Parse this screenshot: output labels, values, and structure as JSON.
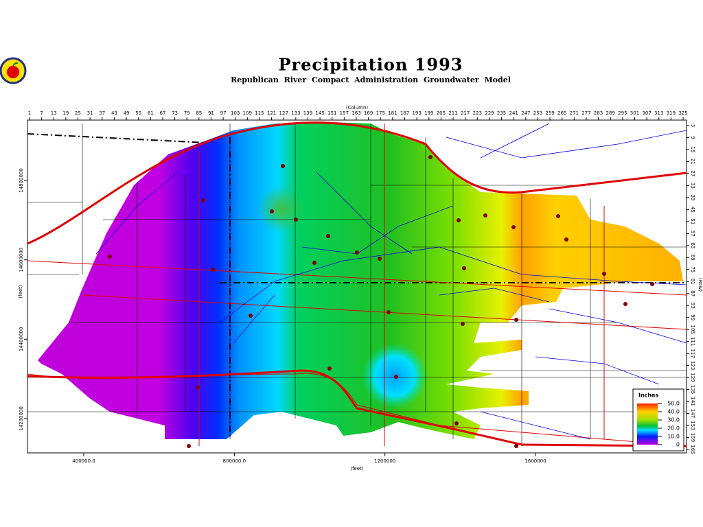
{
  "title": "Precipitation 1993",
  "subtitle": "Republican River Compact Administration Groundwater Model",
  "column_axis": {
    "label": "(Column)",
    "ticks": [
      1,
      7,
      13,
      19,
      25,
      31,
      37,
      43,
      49,
      55,
      61,
      67,
      73,
      79,
      85,
      91,
      97,
      103,
      109,
      115,
      121,
      127,
      133,
      139,
      145,
      151,
      157,
      163,
      169,
      175,
      181,
      187,
      193,
      199,
      205,
      211,
      217,
      223,
      229,
      235,
      241,
      247,
      253,
      259,
      265,
      271,
      277,
      283,
      289,
      295,
      301,
      307,
      313,
      319,
      325
    ]
  },
  "row_axis": {
    "label": "(Row)",
    "ticks": [
      3,
      9,
      15,
      21,
      27,
      33,
      39,
      45,
      51,
      57,
      63,
      69,
      75,
      81,
      87,
      93,
      99,
      105,
      111,
      117,
      123,
      129,
      135,
      141,
      147,
      153,
      159,
      165
    ]
  },
  "x_axis": {
    "label": "(feet)",
    "ticks": [
      {
        "value": 400000,
        "label": "400000.0"
      },
      {
        "value": 800000,
        "label": "800000.0"
      },
      1200000,
      1600000
    ]
  },
  "y_axis": {
    "label": "(feet)",
    "ticks": [
      14800000,
      14600000,
      14400000,
      14200000
    ]
  },
  "legend": {
    "title": "Inches",
    "ticks": [
      {
        "value": 50,
        "label": "50.0"
      },
      {
        "value": 40,
        "label": "40.0"
      },
      {
        "value": 30,
        "label": "30.0"
      },
      {
        "value": 20,
        "label": "20.0"
      },
      {
        "value": 10,
        "label": "10.0"
      },
      0
    ]
  }
}
